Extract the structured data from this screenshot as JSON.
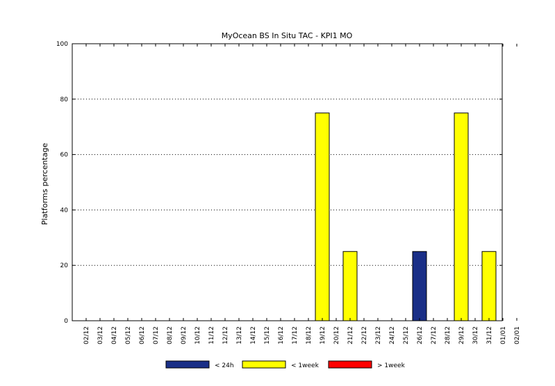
{
  "chart_data": {
    "type": "bar",
    "title": "MyOcean  BS In Situ TAC - KPI1  MO",
    "ylabel": "Platforms percentage",
    "xlabel": "",
    "ylim": [
      0,
      100
    ],
    "yticks": [
      0,
      20,
      40,
      60,
      80,
      100
    ],
    "grid": "horizontal dotted",
    "categories": [
      "02/12",
      "03/12",
      "04/12",
      "05/12",
      "06/12",
      "07/12",
      "08/12",
      "09/12",
      "10/12",
      "11/12",
      "12/12",
      "13/12",
      "14/12",
      "15/12",
      "16/12",
      "17/12",
      "18/12",
      "19/12",
      "20/12",
      "21/12",
      "22/12",
      "23/12",
      "24/12",
      "25/12",
      "26/12",
      "27/12",
      "28/12",
      "29/12",
      "30/12",
      "31/12",
      "01/01",
      "02/01"
    ],
    "series": [
      {
        "name": "< 24h",
        "color": "#1a2f87",
        "values": [
          0,
          0,
          0,
          0,
          0,
          0,
          0,
          0,
          0,
          0,
          0,
          0,
          0,
          0,
          0,
          0,
          0,
          0,
          0,
          0,
          0,
          0,
          0,
          0,
          25,
          0,
          0,
          0,
          0,
          0,
          0,
          0
        ]
      },
      {
        "name": "< 1week",
        "color": "#ffff00",
        "values": [
          0,
          0,
          0,
          0,
          0,
          0,
          0,
          0,
          0,
          0,
          0,
          0,
          0,
          0,
          0,
          0,
          0,
          75,
          0,
          25,
          0,
          0,
          0,
          0,
          0,
          0,
          0,
          75,
          0,
          25,
          0,
          0
        ]
      },
      {
        "name": "> 1week",
        "color": "#ff0000",
        "values": [
          0,
          0,
          0,
          0,
          0,
          0,
          0,
          0,
          0,
          0,
          0,
          0,
          0,
          0,
          0,
          0,
          0,
          0,
          0,
          0,
          0,
          0,
          0,
          0,
          0,
          0,
          0,
          0,
          0,
          0,
          0,
          0
        ]
      }
    ],
    "legend_position": "bottom"
  }
}
